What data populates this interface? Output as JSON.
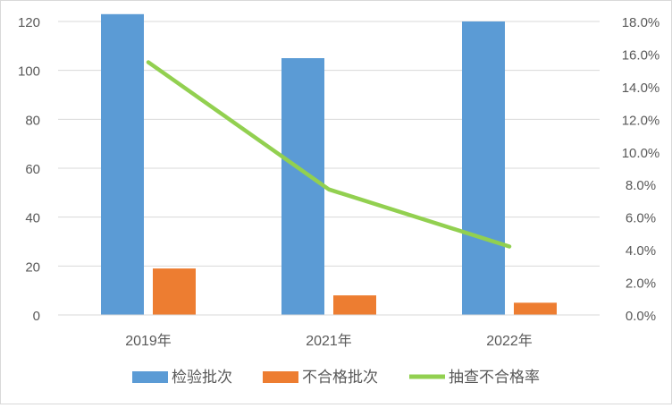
{
  "chart_data": {
    "type": "bar",
    "categories": [
      "2019年",
      "2021年",
      "2022年"
    ],
    "series": [
      {
        "name": "检验批次",
        "type": "bar",
        "axis": "left",
        "color": "#5b9bd5",
        "values": [
          123,
          105,
          120
        ]
      },
      {
        "name": "不合格批次",
        "type": "bar",
        "axis": "left",
        "color": "#ed7d31",
        "values": [
          19,
          8,
          5
        ]
      },
      {
        "name": "抽查不合格率",
        "type": "line",
        "axis": "right",
        "color": "#92d050",
        "values": [
          0.155,
          0.077,
          0.042
        ]
      }
    ],
    "y_left": {
      "min": 0,
      "max": 120,
      "step": 20,
      "tick_labels": [
        "0",
        "20",
        "40",
        "60",
        "80",
        "100",
        "120"
      ]
    },
    "y_right": {
      "min": 0,
      "max": 0.18,
      "step": 0.02,
      "tick_labels": [
        "0.0%",
        "2.0%",
        "4.0%",
        "6.0%",
        "8.0%",
        "10.0%",
        "12.0%",
        "14.0%",
        "16.0%",
        "18.0%"
      ]
    },
    "grid": true,
    "legend_position": "bottom"
  }
}
